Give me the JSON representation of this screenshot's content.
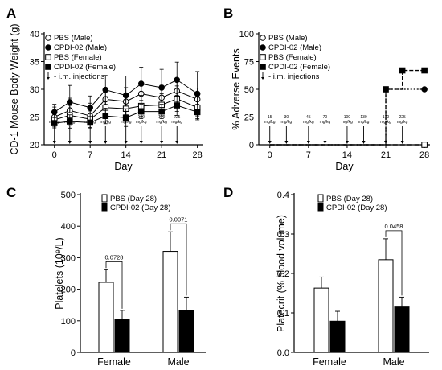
{
  "chart_data": [
    {
      "panel": "A",
      "type": "line",
      "xlabel": "Day",
      "ylabel": "CD-1 Mouse Body Weight (g)",
      "xlim": [
        -2,
        29
      ],
      "ylim": [
        20,
        40
      ],
      "xticks": [
        0,
        7,
        14,
        21,
        28
      ],
      "yticks": [
        20,
        25,
        30,
        35,
        40
      ],
      "injection_days": [
        0,
        3,
        7,
        10,
        14,
        17,
        21,
        24
      ],
      "doses": [
        [
          "15",
          "mg/kg"
        ],
        [
          "30",
          "mg/kg"
        ],
        [
          "45",
          "mg/kg"
        ],
        [
          "70",
          "mg/kg"
        ],
        [
          "100",
          "mg/kg"
        ],
        [
          "130",
          "mg/kg"
        ],
        [
          "170",
          "mg/kg"
        ],
        [
          "225",
          "mg/kg"
        ]
      ],
      "legend_position": "top-left",
      "injection_note": "i.m. injections",
      "series": [
        {
          "name": "PBS (Male)",
          "marker": "circle-open",
          "x": [
            0,
            3,
            7,
            10,
            14,
            17,
            21,
            24,
            28
          ],
          "y": [
            25.0,
            26.2,
            25.2,
            28.2,
            27.8,
            29.2,
            28.5,
            29.7,
            28.2
          ],
          "err": [
            1.8,
            2.2,
            2.3,
            1.8,
            2.5,
            1.8,
            2.2,
            2.3,
            2.0
          ]
        },
        {
          "name": "CPDI-02 (Male)",
          "marker": "circle-filled",
          "x": [
            0,
            3,
            7,
            10,
            14,
            17,
            21,
            24,
            28
          ],
          "y": [
            25.9,
            27.7,
            26.7,
            29.9,
            28.9,
            31.0,
            30.3,
            31.7,
            29.2
          ],
          "err": [
            1.4,
            3.0,
            2.1,
            2.6,
            3.5,
            3.0,
            3.3,
            3.2,
            4.0
          ]
        },
        {
          "name": "PBS (Female)",
          "marker": "square-open",
          "x": [
            0,
            3,
            7,
            10,
            14,
            17,
            21,
            24,
            28
          ],
          "y": [
            24.5,
            25.3,
            24.6,
            26.7,
            26.5,
            27.0,
            27.2,
            28.3,
            26.7
          ],
          "err": [
            1.3,
            1.8,
            1.5,
            2.0,
            2.2,
            1.9,
            2.0,
            2.3,
            2.0
          ]
        },
        {
          "name": "CPDI-02 (Female)",
          "marker": "square-filled",
          "x": [
            0,
            3,
            7,
            10,
            14,
            17,
            21,
            24,
            28
          ],
          "y": [
            23.9,
            24.2,
            24.0,
            25.2,
            24.9,
            26.0,
            26.0,
            27.1,
            25.9
          ],
          "err": [
            1.0,
            1.2,
            1.1,
            1.4,
            1.6,
            1.3,
            1.3,
            1.8,
            1.4
          ]
        }
      ]
    },
    {
      "panel": "B",
      "type": "line",
      "xlabel": "Day",
      "ylabel": "% Adverse Events",
      "xlim": [
        -2,
        29
      ],
      "ylim": [
        0,
        100
      ],
      "xticks": [
        0,
        7,
        14,
        21,
        28
      ],
      "yticks": [
        0,
        25,
        50,
        75,
        100
      ],
      "injection_days": [
        0,
        3,
        7,
        10,
        14,
        17,
        21,
        24
      ],
      "doses": [
        [
          "15",
          "mg/kg"
        ],
        [
          "30",
          "mg/kg"
        ],
        [
          "45",
          "mg/kg"
        ],
        [
          "70",
          "mg/kg"
        ],
        [
          "100",
          "mg/kg"
        ],
        [
          "130",
          "mg/kg"
        ],
        [
          "170",
          "mg/kg"
        ],
        [
          "225",
          "mg/kg"
        ]
      ],
      "legend_position": "top-left",
      "injection_note": "i.m. injections",
      "series": [
        {
          "name": "PBS (Male)",
          "marker": "circle-open",
          "x": [
            0,
            28
          ],
          "y": [
            0,
            0
          ]
        },
        {
          "name": "CPDI-02 (Male)",
          "marker": "circle-filled",
          "x": [
            0,
            21,
            21,
            28
          ],
          "y": [
            0,
            0,
            50,
            50
          ]
        },
        {
          "name": "PBS (Female)",
          "marker": "square-open",
          "x": [
            0,
            28
          ],
          "y": [
            0,
            0
          ]
        },
        {
          "name": "CPDI-02 (Female)",
          "marker": "square-filled",
          "x": [
            0,
            21,
            21,
            24,
            24,
            28
          ],
          "y": [
            0,
            0,
            50,
            50,
            67,
            67
          ]
        }
      ]
    },
    {
      "panel": "C",
      "type": "bar",
      "xlabel": "",
      "ylabel": "Platelets (10⁹/L)",
      "ylim": [
        0,
        500
      ],
      "yticks": [
        0,
        100,
        200,
        300,
        400,
        500
      ],
      "categories": [
        "Female",
        "Male"
      ],
      "legend_position": "top-left",
      "series": [
        {
          "name": "PBS  (Day 28)",
          "fill": "open",
          "values": [
            222,
            320
          ],
          "err": [
            40,
            62
          ]
        },
        {
          "name": "CPDI-02  (Day 28)",
          "fill": "filled",
          "values": [
            105,
            133
          ],
          "err": [
            28,
            42
          ]
        }
      ],
      "pvalues": [
        "0.0728",
        "0.0071"
      ]
    },
    {
      "panel": "D",
      "type": "bar",
      "xlabel": "",
      "ylabel": "Platecrit (% blood volume)",
      "ylim": [
        0,
        0.4
      ],
      "yticks": [
        "0.0",
        "0.1",
        "0.2",
        "0.3",
        "0.4"
      ],
      "categories": [
        "Female",
        "Male"
      ],
      "legend_position": "top-left",
      "series": [
        {
          "name": "PBS  (Day 28)",
          "fill": "open",
          "values": [
            0.163,
            0.235
          ],
          "err": [
            0.028,
            0.053
          ]
        },
        {
          "name": "CPDI-02  (Day 28)",
          "fill": "filled",
          "values": [
            0.079,
            0.115
          ],
          "err": [
            0.025,
            0.025
          ]
        }
      ],
      "pvalues": [
        "",
        "0.0458"
      ]
    }
  ]
}
